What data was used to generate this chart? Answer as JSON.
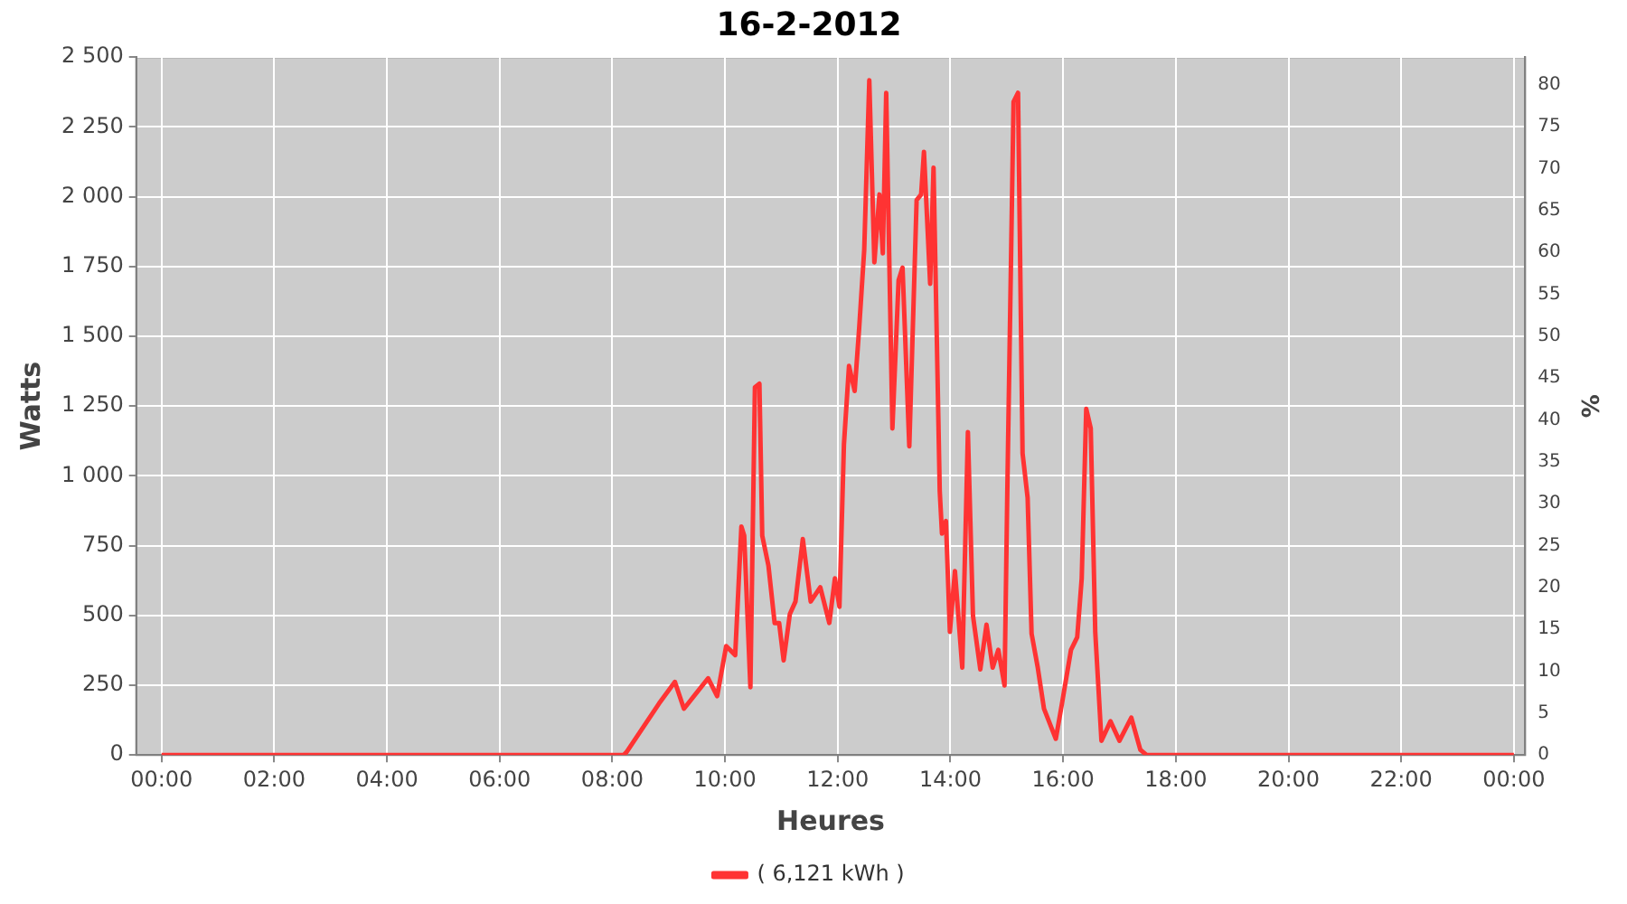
{
  "chart_data": {
    "type": "line",
    "title": "16-2-2012",
    "xlabel": "Heures",
    "ylabel": "Watts",
    "y2label": "%",
    "xlim": [
      -0.45,
      24.2
    ],
    "xticks": [
      {
        "value": 0,
        "label": "00:00"
      },
      {
        "value": 2,
        "label": "02:00"
      },
      {
        "value": 4,
        "label": "04:00"
      },
      {
        "value": 6,
        "label": "06:00"
      },
      {
        "value": 8,
        "label": "08:00"
      },
      {
        "value": 10,
        "label": "10:00"
      },
      {
        "value": 12,
        "label": "12:00"
      },
      {
        "value": 14,
        "label": "14:00"
      },
      {
        "value": 16,
        "label": "16:00"
      },
      {
        "value": 18,
        "label": "18:00"
      },
      {
        "value": 20,
        "label": "20:00"
      },
      {
        "value": 22,
        "label": "22:00"
      },
      {
        "value": 24,
        "label": "00:00"
      }
    ],
    "ylim": [
      0,
      2500
    ],
    "yticks": [
      0,
      250,
      500,
      750,
      {
        "value": 1000,
        "label": "1 000"
      },
      {
        "value": 1250,
        "label": "1 250"
      },
      {
        "value": 1500,
        "label": "1 500"
      },
      {
        "value": 1750,
        "label": "1 750"
      },
      {
        "value": 2000,
        "label": "2 000"
      },
      {
        "value": 2250,
        "label": "2 250"
      },
      {
        "value": 2500,
        "label": "2 500"
      }
    ],
    "y2lim": [
      0,
      83.3
    ],
    "y2ticks": [
      0,
      5,
      10,
      15,
      20,
      25,
      30,
      35,
      40,
      45,
      50,
      55,
      60,
      65,
      70,
      75,
      80
    ],
    "grid": true,
    "legend": "bottom",
    "marker": "none",
    "line_style": "solid",
    "series": [
      {
        "name": "( 6,121 kWh )",
        "color": "#ff3333",
        "x": [
          0,
          8.2,
          8.25,
          8.83,
          9.11,
          9.27,
          9.7,
          9.86,
          10.02,
          10.18,
          10.29,
          10.34,
          10.45,
          10.53,
          10.61,
          10.66,
          10.77,
          10.88,
          10.96,
          11.04,
          11.15,
          11.25,
          11.38,
          11.52,
          11.69,
          11.85,
          11.95,
          12.03,
          12.11,
          12.2,
          12.3,
          12.38,
          12.47,
          12.56,
          12.65,
          12.74,
          12.8,
          12.86,
          12.97,
          13.08,
          13.15,
          13.27,
          13.4,
          13.48,
          13.53,
          13.64,
          13.7,
          13.81,
          13.85,
          13.92,
          13.99,
          14.08,
          14.21,
          14.31,
          14.4,
          14.53,
          14.64,
          14.75,
          14.85,
          14.96,
          15.01,
          15.12,
          15.2,
          15.28,
          15.37,
          15.44,
          15.55,
          15.66,
          15.87,
          15.98,
          16.14,
          16.25,
          16.33,
          16.41,
          16.49,
          16.57,
          16.68,
          16.84,
          17,
          17.21,
          17.37,
          17.48,
          24
        ],
        "values": [
          0,
          0,
          10,
          185,
          262,
          166,
          275,
          211,
          390,
          358,
          818,
          786,
          243,
          1317,
          1330,
          786,
          678,
          473,
          473,
          339,
          505,
          550,
          774,
          550,
          601,
          473,
          633,
          531,
          1113,
          1394,
          1304,
          1528,
          1810,
          2417,
          1765,
          2008,
          1797,
          2372,
          1170,
          1701,
          1746,
          1106,
          1988,
          2008,
          2161,
          1688,
          2104,
          946,
          793,
          838,
          441,
          659,
          313,
          1157,
          499,
          307,
          467,
          313,
          377,
          249,
          953,
          2340,
          2372,
          1081,
          921,
          435,
          313,
          166,
          58,
          185,
          377,
          422,
          633,
          1240,
          1170,
          441,
          51,
          121,
          51,
          134,
          19,
          0,
          0
        ]
      }
    ]
  }
}
